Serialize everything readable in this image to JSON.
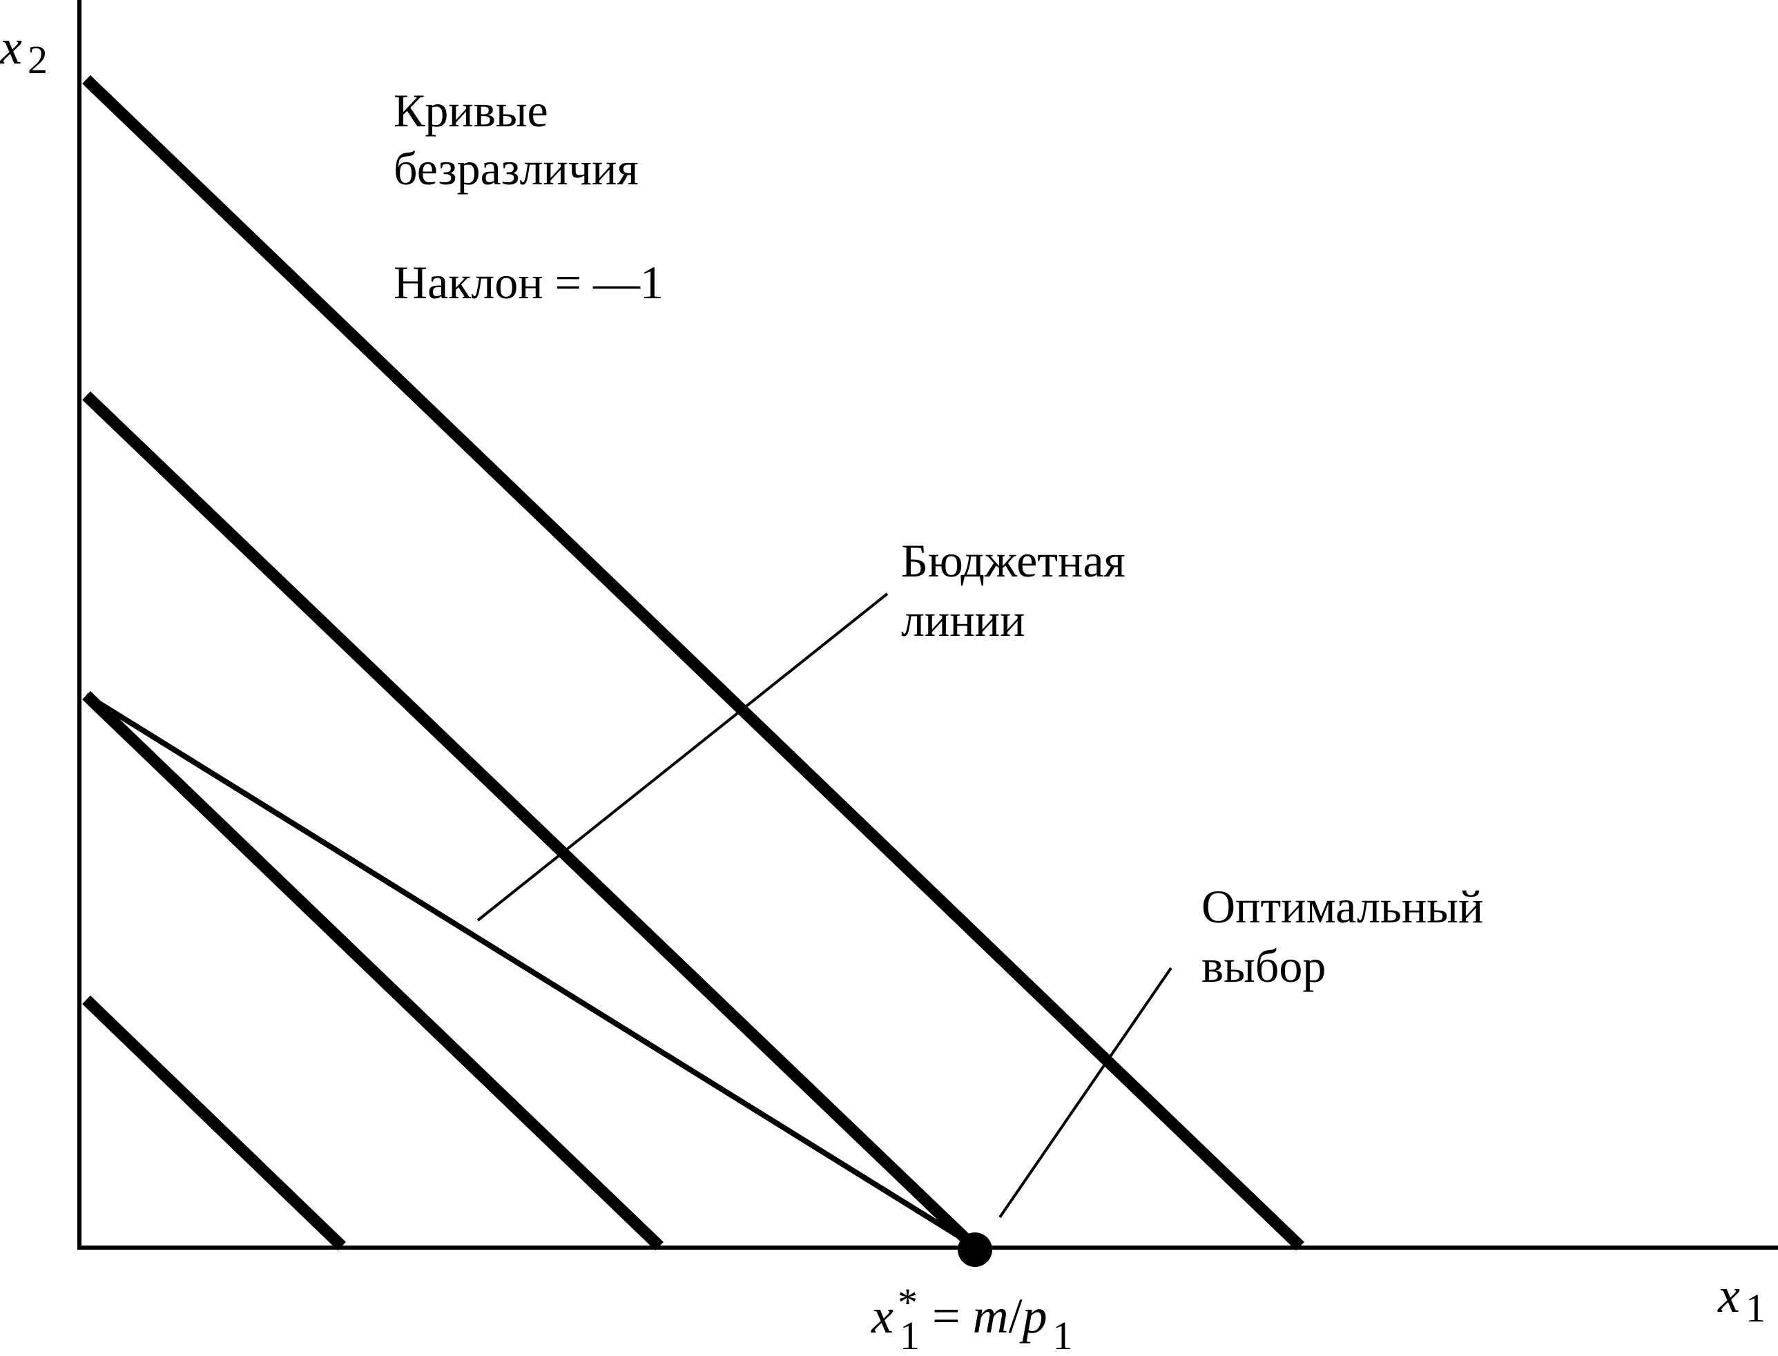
{
  "labels": {
    "axis_x_var": "x",
    "axis_x_sub": "1",
    "axis_y_var": "x",
    "axis_y_sub": "2",
    "indifference_line1": "Кривые",
    "indifference_line2": "безразличия",
    "slope": "Наклон = —1",
    "budget_line1": "Бюджетная",
    "budget_line2": "линии",
    "optimum_line1": "Оптимальный",
    "optimum_line2": "выбор",
    "xstar_var": "x",
    "xstar_sup": "*",
    "xstar_sub": "1",
    "xstar_eq": " = ",
    "xstar_m": "m",
    "xstar_slash": "/",
    "xstar_p": "p",
    "xstar_psub": "1"
  },
  "colors": {
    "ink": "#000000",
    "background": "#ffffff"
  }
}
